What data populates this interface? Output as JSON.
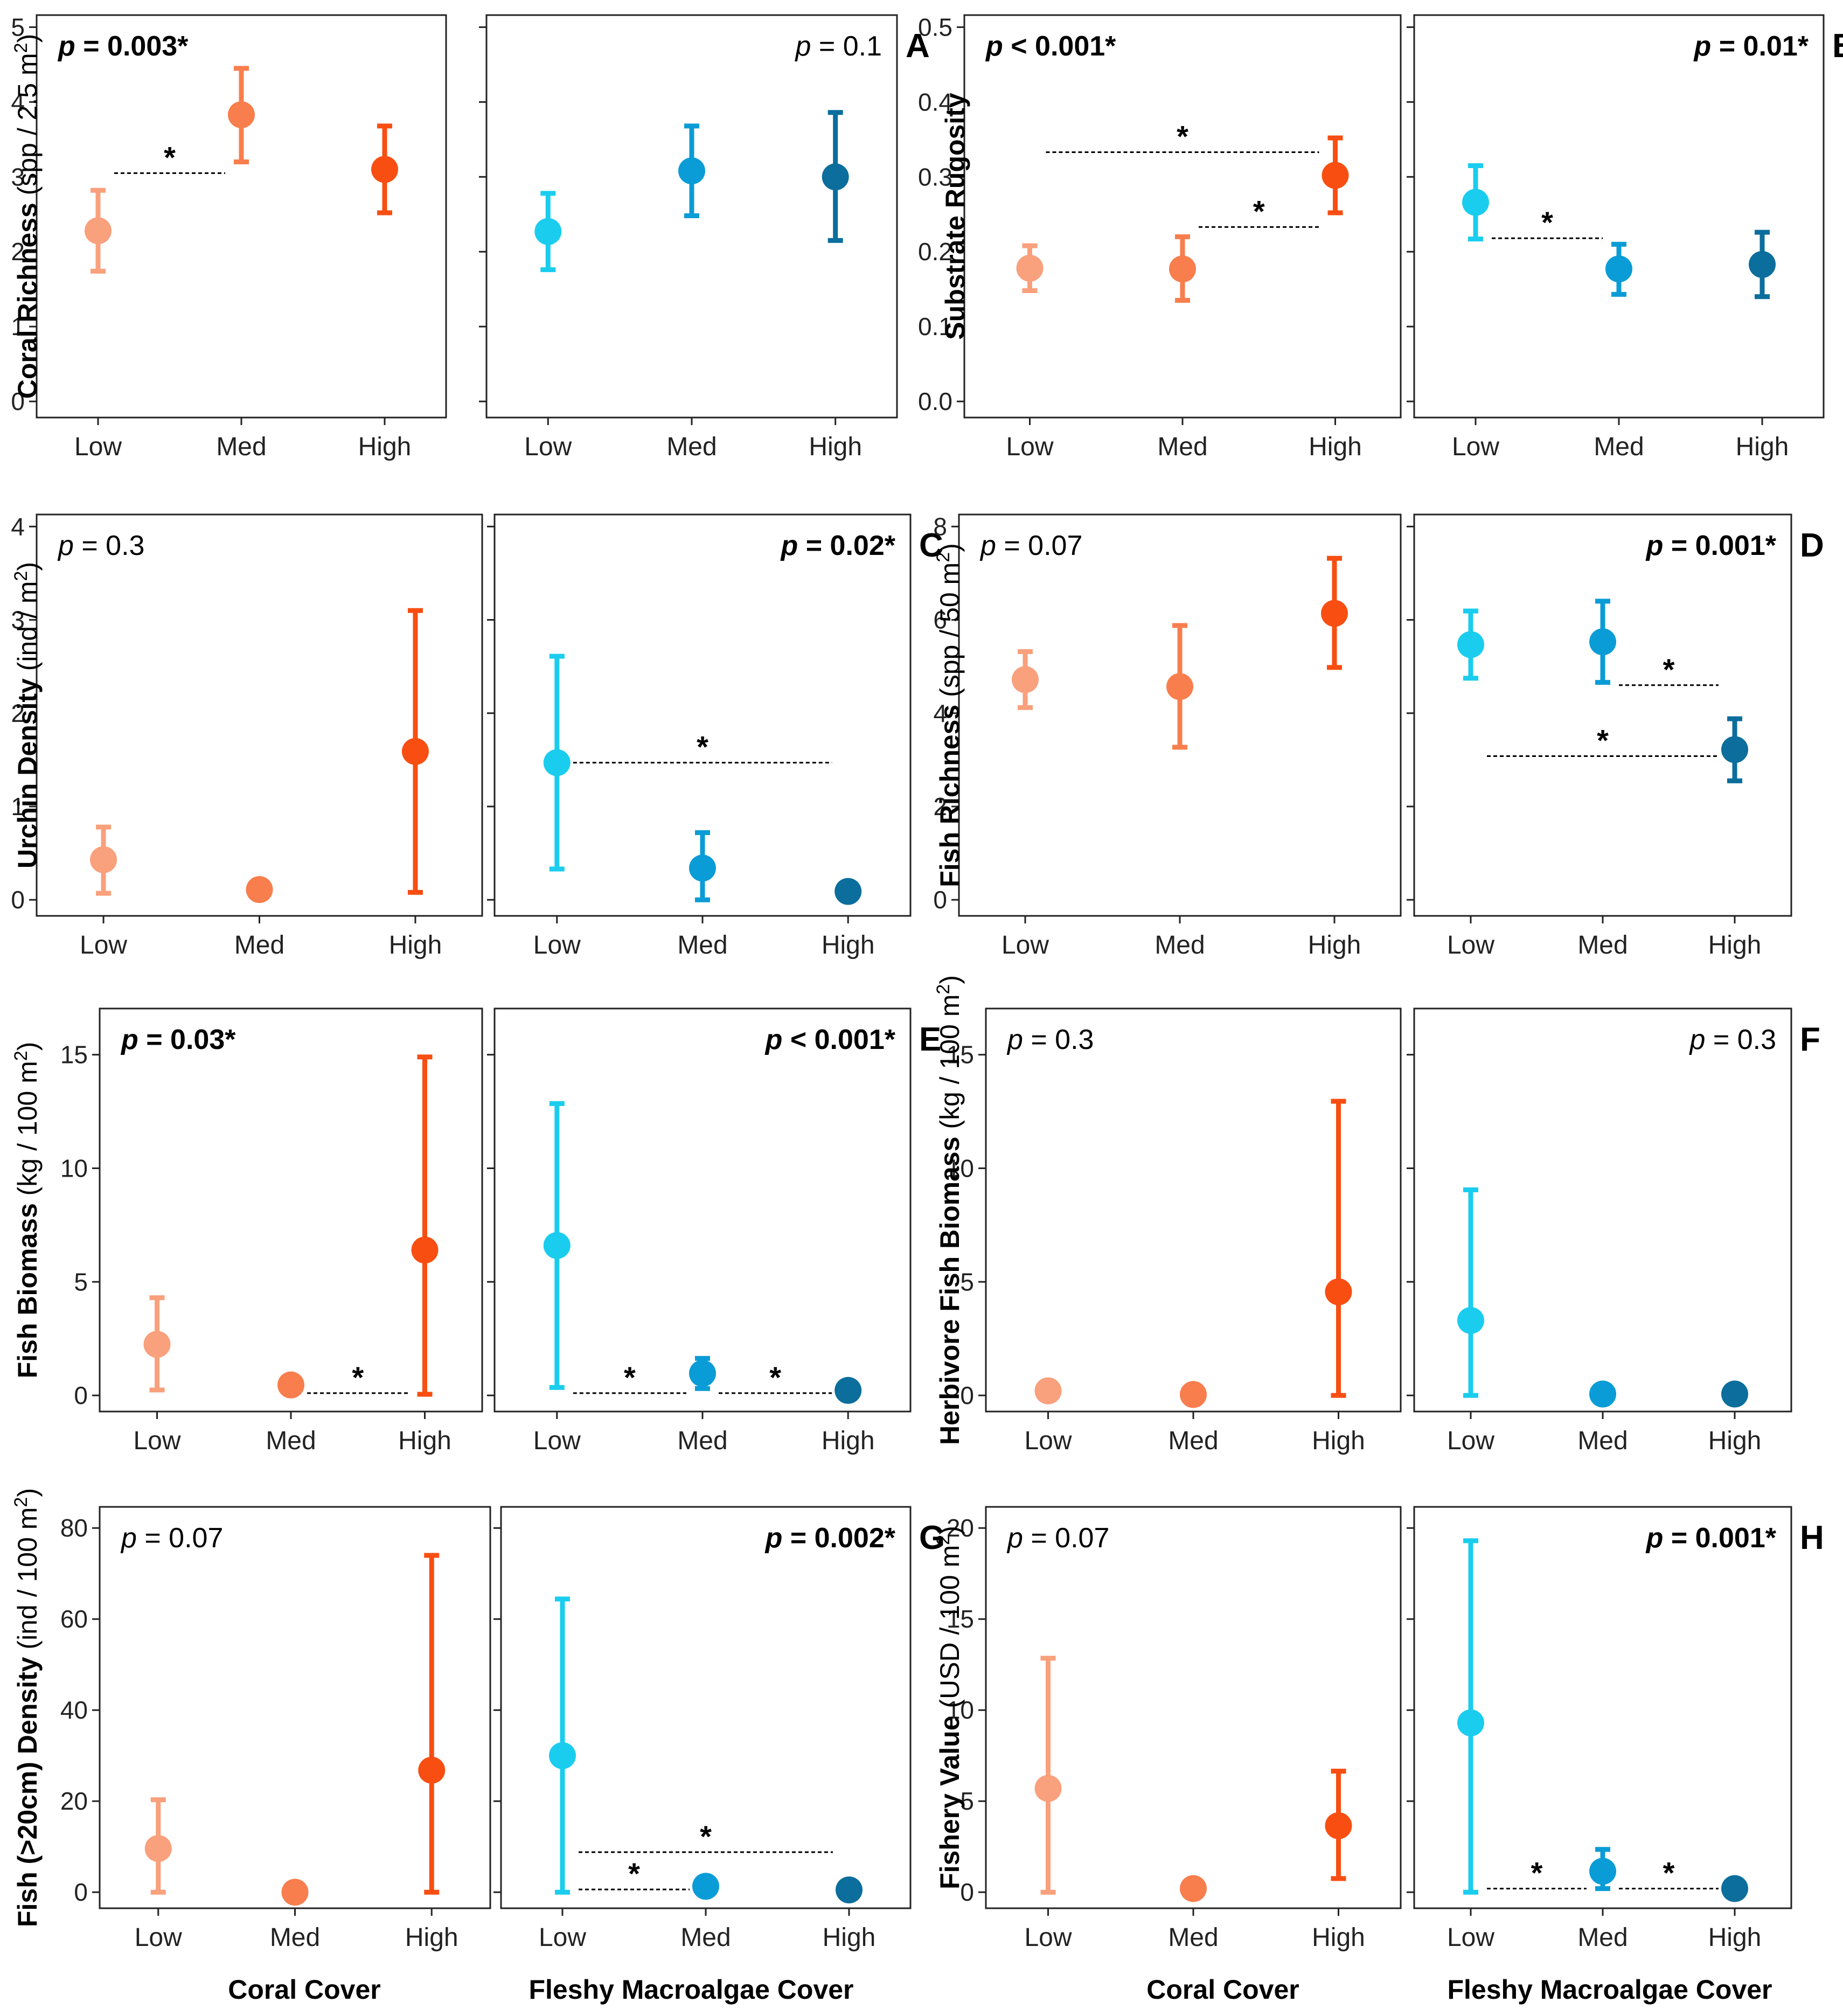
{
  "colors": {
    "coral_low": "#F9A07C",
    "coral_med": "#F87E4D",
    "coral_high": "#F84E12",
    "algae_low": "#1ACDEE",
    "algae_med": "#0A9CD6",
    "algae_high": "#0B6E9C",
    "frame": "#222222",
    "text": "#000000"
  },
  "footer": {
    "xlabel_coral": "Coral Cover",
    "xlabel_algae": "Fleshy Macroalgae Cover"
  },
  "chart_data": [
    {
      "type": "scatter",
      "panel": "A",
      "ylabel_bold": "Coral Richness",
      "ylabel_unit": "(spp / 2.5 m",
      "ylabel_sup": "2",
      "ylabel_close": ")",
      "ylim": [
        0,
        5
      ],
      "yticks": [
        0,
        1,
        2,
        3,
        4,
        5
      ],
      "categories": [
        "Low",
        "Med",
        "High"
      ],
      "series": [
        {
          "name": "Coral Cover",
          "pval": {
            "italic": "p",
            "rest": " = 0.003*",
            "bold": true,
            "align": "left"
          },
          "points": [
            {
              "x": "Low",
              "mean": 2.28,
              "lo": 1.74,
              "hi": 2.82
            },
            {
              "x": "Med",
              "mean": 3.83,
              "lo": 3.2,
              "hi": 4.45
            },
            {
              "x": "High",
              "mean": 3.1,
              "lo": 2.52,
              "hi": 3.68
            }
          ],
          "sig": [
            {
              "from": "Low",
              "to": "Med",
              "y": 3.05,
              "label": "*"
            }
          ]
        },
        {
          "name": "Fleshy Macroalgae Cover",
          "pval": {
            "italic": "p",
            "rest": " = 0.1",
            "bold": false,
            "align": "right"
          },
          "points": [
            {
              "x": "Low",
              "mean": 2.27,
              "lo": 1.76,
              "hi": 2.78
            },
            {
              "x": "Med",
              "mean": 3.08,
              "lo": 2.48,
              "hi": 3.68
            },
            {
              "x": "High",
              "mean": 3.0,
              "lo": 2.15,
              "hi": 3.86
            }
          ],
          "sig": []
        }
      ]
    },
    {
      "type": "scatter",
      "panel": "B",
      "ylabel_bold": "Substrate Rugosity",
      "ylabel_unit": "",
      "ylabel_sup": "",
      "ylabel_close": "",
      "ylim": [
        0,
        0.5
      ],
      "yticks": [
        0.0,
        0.1,
        0.2,
        0.3,
        0.4,
        0.5
      ],
      "tick_decimals": 1,
      "categories": [
        "Low",
        "Med",
        "High"
      ],
      "series": [
        {
          "name": "Coral Cover",
          "pval": {
            "italic": "p",
            "rest": " < 0.001*",
            "bold": true,
            "align": "left"
          },
          "points": [
            {
              "x": "Low",
              "mean": 0.178,
              "lo": 0.148,
              "hi": 0.208
            },
            {
              "x": "Med",
              "mean": 0.177,
              "lo": 0.135,
              "hi": 0.22
            },
            {
              "x": "High",
              "mean": 0.302,
              "lo": 0.252,
              "hi": 0.352
            }
          ],
          "sig": [
            {
              "from": "Low",
              "to": "High",
              "y": 0.333,
              "label": "*"
            },
            {
              "from": "Med",
              "to": "High",
              "y": 0.233,
              "label": "*"
            }
          ]
        },
        {
          "name": "Fleshy Macroalgae Cover",
          "pval": {
            "italic": "p",
            "rest": " = 0.01*",
            "bold": true,
            "align": "right"
          },
          "points": [
            {
              "x": "Low",
              "mean": 0.266,
              "lo": 0.217,
              "hi": 0.315
            },
            {
              "x": "Med",
              "mean": 0.177,
              "lo": 0.143,
              "hi": 0.21
            },
            {
              "x": "High",
              "mean": 0.183,
              "lo": 0.14,
              "hi": 0.226
            }
          ],
          "sig": [
            {
              "from": "Low",
              "to": "Med",
              "y": 0.218,
              "label": "*"
            }
          ]
        }
      ]
    },
    {
      "type": "scatter",
      "panel": "C",
      "ylabel_bold": "Urchin Density",
      "ylabel_unit": "(ind / m",
      "ylabel_sup": "2",
      "ylabel_close": ")",
      "ylim": [
        0,
        4
      ],
      "yticks": [
        0,
        1,
        2,
        3,
        4
      ],
      "categories": [
        "Low",
        "Med",
        "High"
      ],
      "series": [
        {
          "name": "Coral Cover",
          "pval": {
            "italic": "p",
            "rest": " = 0.3",
            "bold": false,
            "align": "left"
          },
          "points": [
            {
              "x": "Low",
              "mean": 0.43,
              "lo": 0.07,
              "hi": 0.78
            },
            {
              "x": "Med",
              "mean": 0.11,
              "lo": 0.11,
              "hi": 0.11
            },
            {
              "x": "High",
              "mean": 1.59,
              "lo": 0.08,
              "hi": 3.1
            }
          ],
          "sig": []
        },
        {
          "name": "Fleshy Macroalgae Cover",
          "pval": {
            "italic": "p",
            "rest": " = 0.02*",
            "bold": true,
            "align": "right"
          },
          "points": [
            {
              "x": "Low",
              "mean": 1.47,
              "lo": 0.33,
              "hi": 2.61
            },
            {
              "x": "Med",
              "mean": 0.34,
              "lo": 0.0,
              "hi": 0.72
            },
            {
              "x": "High",
              "mean": 0.09,
              "lo": 0.09,
              "hi": 0.09
            }
          ],
          "sig": [
            {
              "from": "Low",
              "to": "High",
              "y": 1.47,
              "label": "*"
            }
          ]
        }
      ]
    },
    {
      "type": "scatter",
      "panel": "D",
      "ylabel_bold": "Fish Richness",
      "ylabel_unit": "(spp / 50 m",
      "ylabel_sup": "2",
      "ylabel_close": ")",
      "ylim": [
        0,
        8
      ],
      "yticks": [
        0,
        2,
        4,
        6,
        8
      ],
      "categories": [
        "Low",
        "Med",
        "High"
      ],
      "series": [
        {
          "name": "Coral Cover",
          "pval": {
            "italic": "p",
            "rest": " = 0.07",
            "bold": false,
            "align": "left"
          },
          "points": [
            {
              "x": "Low",
              "mean": 4.72,
              "lo": 4.12,
              "hi": 5.32
            },
            {
              "x": "Med",
              "mean": 4.57,
              "lo": 3.27,
              "hi": 5.88
            },
            {
              "x": "High",
              "mean": 6.14,
              "lo": 4.98,
              "hi": 7.32
            }
          ],
          "sig": []
        },
        {
          "name": "Fleshy Macroalgae Cover",
          "pval": {
            "italic": "p",
            "rest": " = 0.001*",
            "bold": true,
            "align": "right"
          },
          "points": [
            {
              "x": "Low",
              "mean": 5.47,
              "lo": 4.75,
              "hi": 6.19
            },
            {
              "x": "Med",
              "mean": 5.53,
              "lo": 4.66,
              "hi": 6.4
            },
            {
              "x": "High",
              "mean": 3.22,
              "lo": 2.55,
              "hi": 3.88
            }
          ],
          "sig": [
            {
              "from": "Med",
              "to": "High",
              "y": 4.6,
              "label": "*"
            },
            {
              "from": "Low",
              "to": "High",
              "y": 3.08,
              "label": "*"
            }
          ]
        }
      ]
    },
    {
      "type": "scatter",
      "panel": "E",
      "ylabel_bold": "Fish Biomass",
      "ylabel_unit": "(kg / 100 m",
      "ylabel_sup": "2",
      "ylabel_close": ")",
      "ylim": [
        0,
        16.5
      ],
      "yticks": [
        0,
        5,
        10,
        15
      ],
      "categories": [
        "Low",
        "Med",
        "High"
      ],
      "series": [
        {
          "name": "Coral Cover",
          "pval": {
            "italic": "p",
            "rest": " = 0.03*",
            "bold": true,
            "align": "left"
          },
          "points": [
            {
              "x": "Low",
              "mean": 2.25,
              "lo": 0.24,
              "hi": 4.3
            },
            {
              "x": "Med",
              "mean": 0.46,
              "lo": 0.46,
              "hi": 0.46
            },
            {
              "x": "High",
              "mean": 6.4,
              "lo": 0.05,
              "hi": 14.9
            }
          ],
          "sig": [
            {
              "from": "Med",
              "to": "High",
              "y": 0.1,
              "label": "*"
            }
          ]
        },
        {
          "name": "Fleshy Macroalgae Cover",
          "pval": {
            "italic": "p",
            "rest": " < 0.001*",
            "bold": true,
            "align": "right"
          },
          "points": [
            {
              "x": "Low",
              "mean": 6.6,
              "lo": 0.35,
              "hi": 12.85
            },
            {
              "x": "Med",
              "mean": 0.97,
              "lo": 0.3,
              "hi": 1.63
            },
            {
              "x": "High",
              "mean": 0.22,
              "lo": 0.22,
              "hi": 0.22
            }
          ],
          "sig": [
            {
              "from": "Low",
              "to": "Med",
              "y": 0.1,
              "label": "*"
            },
            {
              "from": "Med",
              "to": "High",
              "y": 0.1,
              "label": "*"
            }
          ]
        }
      ]
    },
    {
      "type": "scatter",
      "panel": "F",
      "ylabel_bold": "Herbivore Fish Biomass",
      "ylabel_unit": "(kg / 100 m",
      "ylabel_sup": "2",
      "ylabel_close": ")",
      "ylim": [
        0,
        16.5
      ],
      "yticks": [
        0,
        5,
        10,
        15
      ],
      "categories": [
        "Low",
        "Med",
        "High"
      ],
      "series": [
        {
          "name": "Coral Cover",
          "pval": {
            "italic": "p",
            "rest": " = 0.3",
            "bold": false,
            "align": "left"
          },
          "points": [
            {
              "x": "Low",
              "mean": 0.2,
              "lo": 0.2,
              "hi": 0.2
            },
            {
              "x": "Med",
              "mean": 0.04,
              "lo": 0.04,
              "hi": 0.04
            },
            {
              "x": "High",
              "mean": 4.56,
              "lo": 0.0,
              "hi": 12.95
            }
          ],
          "sig": []
        },
        {
          "name": "Fleshy Macroalgae Cover",
          "pval": {
            "italic": "p",
            "rest": " = 0.3",
            "bold": false,
            "align": "right"
          },
          "points": [
            {
              "x": "Low",
              "mean": 3.3,
              "lo": 0.0,
              "hi": 9.05
            },
            {
              "x": "Med",
              "mean": 0.06,
              "lo": 0.06,
              "hi": 0.06
            },
            {
              "x": "High",
              "mean": 0.06,
              "lo": 0.06,
              "hi": 0.06
            }
          ],
          "sig": []
        }
      ]
    },
    {
      "type": "scatter",
      "panel": "G",
      "ylabel_bold": "Fish (>20cm) Density",
      "ylabel_unit": "(ind / 100 m",
      "ylabel_sup": "2",
      "ylabel_close": ")",
      "ylim": [
        0,
        82
      ],
      "yticks": [
        0,
        20,
        40,
        60,
        80
      ],
      "categories": [
        "Low",
        "Med",
        "High"
      ],
      "series": [
        {
          "name": "Coral Cover",
          "pval": {
            "italic": "p",
            "rest": " = 0.07",
            "bold": false,
            "align": "left"
          },
          "points": [
            {
              "x": "Low",
              "mean": 9.6,
              "lo": 0.0,
              "hi": 20.3
            },
            {
              "x": "Med",
              "mean": 0.0,
              "lo": 0.0,
              "hi": 0.0
            },
            {
              "x": "High",
              "mean": 26.8,
              "lo": 0.0,
              "hi": 74.0
            }
          ],
          "sig": []
        },
        {
          "name": "Fleshy Macroalgae Cover",
          "pval": {
            "italic": "p",
            "rest": " = 0.002*",
            "bold": true,
            "align": "right"
          },
          "points": [
            {
              "x": "Low",
              "mean": 30.0,
              "lo": 0.0,
              "hi": 64.4
            },
            {
              "x": "Med",
              "mean": 1.3,
              "lo": 1.3,
              "hi": 1.3
            },
            {
              "x": "High",
              "mean": 0.5,
              "lo": 0.5,
              "hi": 0.5
            }
          ],
          "sig": [
            {
              "from": "Low",
              "to": "High",
              "y": 8.8,
              "label": "*"
            },
            {
              "from": "Low",
              "to": "Med",
              "y": 0.6,
              "label": "*"
            }
          ]
        }
      ]
    },
    {
      "type": "scatter",
      "panel": "H",
      "ylabel_bold": "Fishery Value",
      "ylabel_unit": "(USD / 100 m",
      "ylabel_sup": "2",
      "ylabel_close": ")",
      "ylim": [
        0,
        20.5
      ],
      "yticks": [
        0,
        5,
        10,
        15,
        20
      ],
      "categories": [
        "Low",
        "Med",
        "High"
      ],
      "series": [
        {
          "name": "Coral Cover",
          "pval": {
            "italic": "p",
            "rest": " = 0.07",
            "bold": false,
            "align": "left"
          },
          "points": [
            {
              "x": "Low",
              "mean": 5.7,
              "lo": 0.0,
              "hi": 12.85
            },
            {
              "x": "Med",
              "mean": 0.2,
              "lo": 0.2,
              "hi": 0.2
            },
            {
              "x": "High",
              "mean": 3.65,
              "lo": 0.75,
              "hi": 6.65
            }
          ],
          "sig": []
        },
        {
          "name": "Fleshy Macroalgae Cover",
          "pval": {
            "italic": "p",
            "rest": " = 0.001*",
            "bold": true,
            "align": "right"
          },
          "points": [
            {
              "x": "Low",
              "mean": 9.3,
              "lo": 0.0,
              "hi": 19.3
            },
            {
              "x": "Med",
              "mean": 1.15,
              "lo": 0.2,
              "hi": 2.35
            },
            {
              "x": "High",
              "mean": 0.2,
              "lo": 0.2,
              "hi": 0.2
            }
          ],
          "sig": [
            {
              "from": "Low",
              "to": "Med",
              "y": 0.2,
              "label": "*"
            },
            {
              "from": "Med",
              "to": "High",
              "y": 0.2,
              "label": "*"
            }
          ]
        }
      ]
    }
  ]
}
